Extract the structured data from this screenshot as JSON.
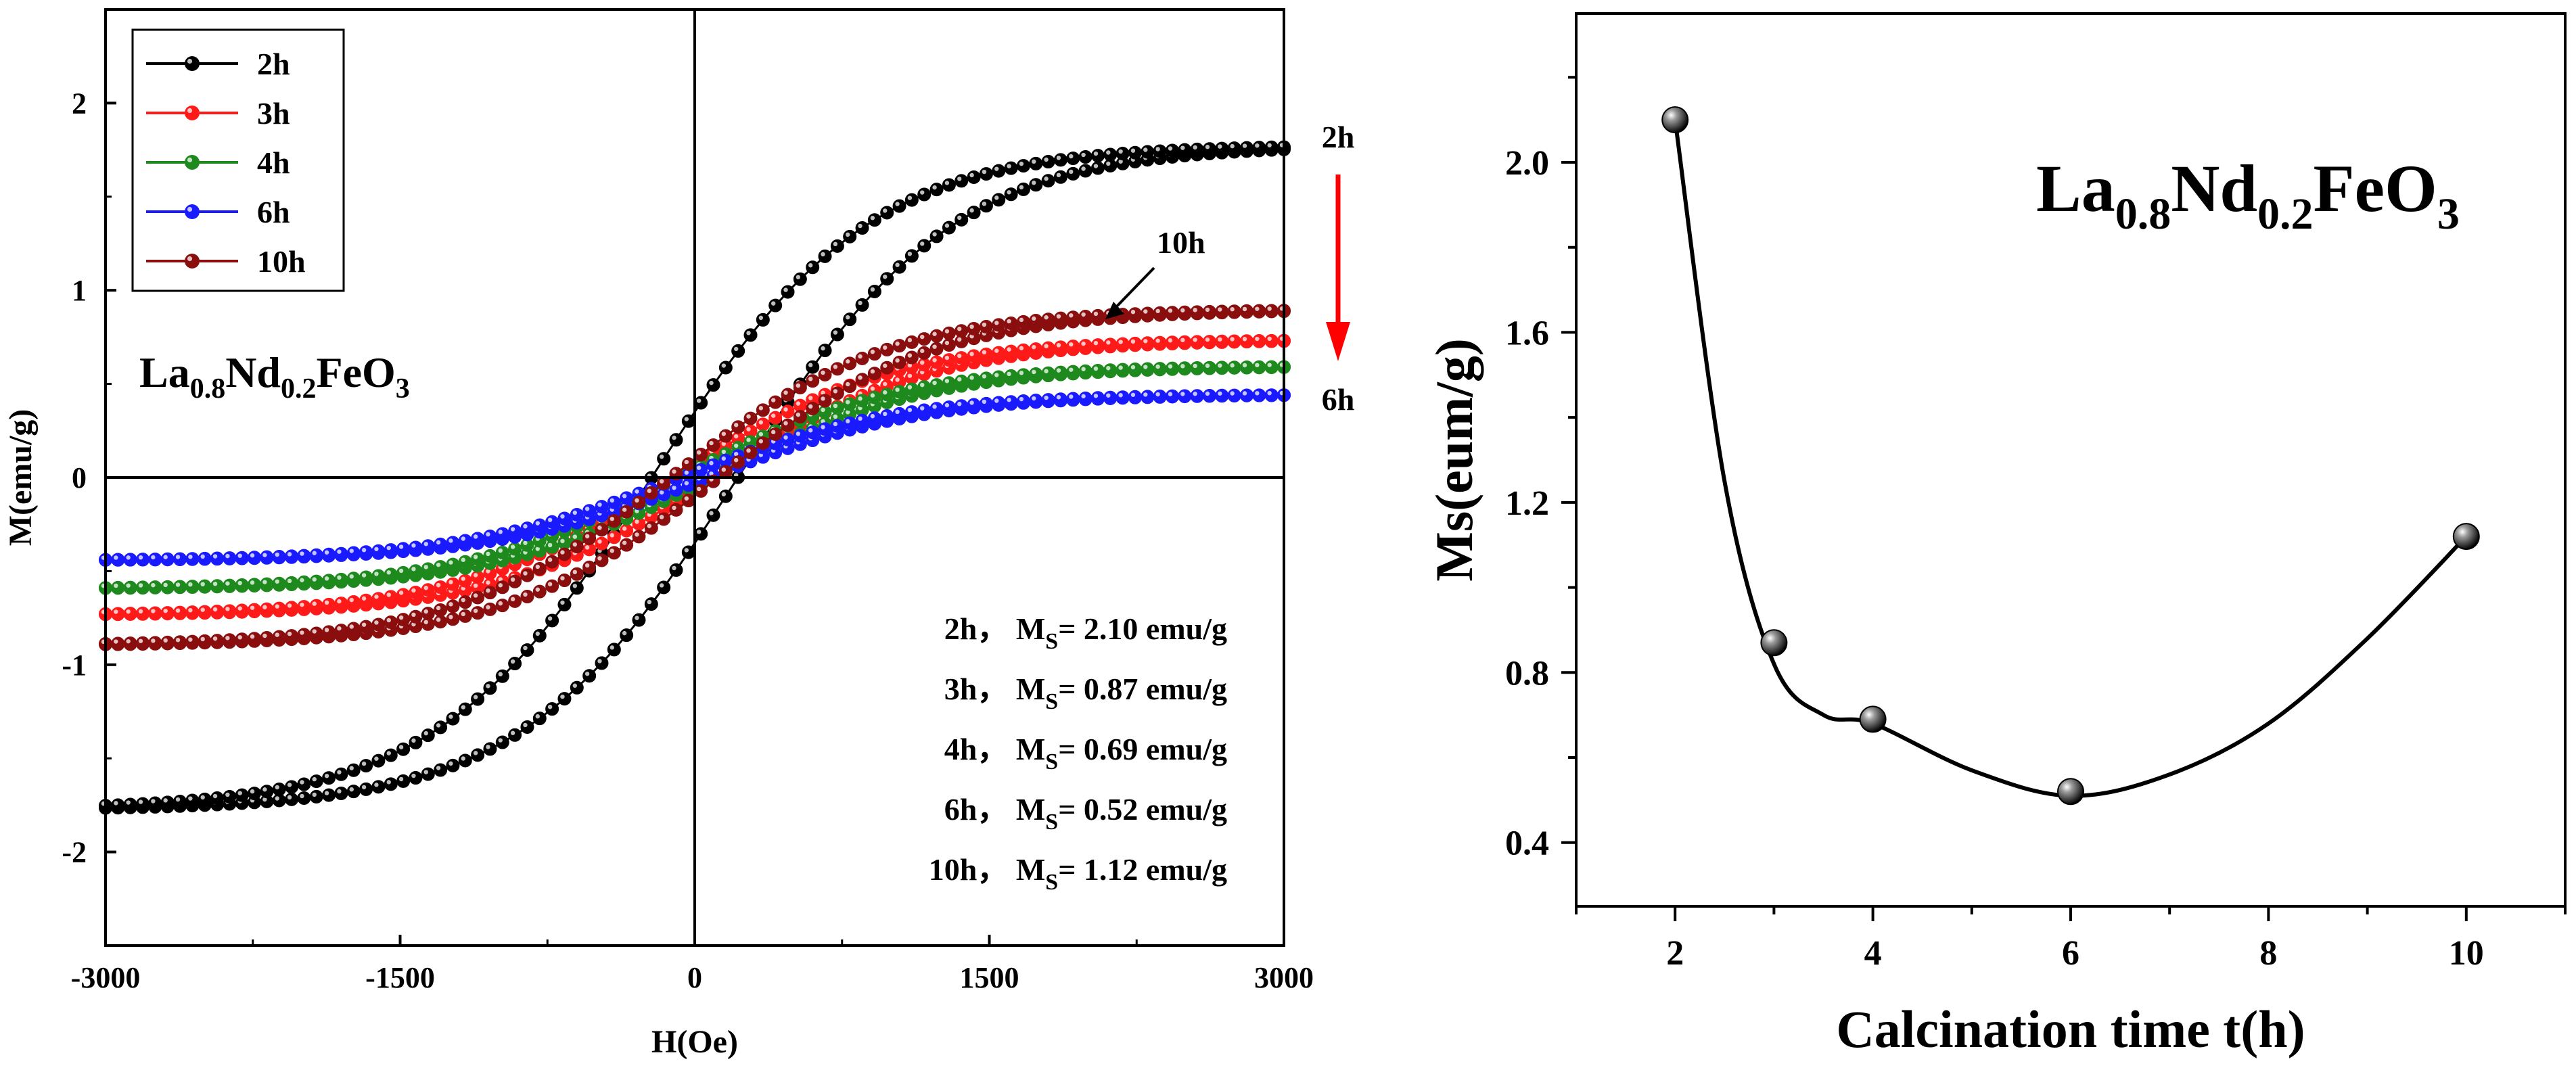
{
  "colors": {
    "2h": "#000000",
    "3h": "#ff1a1a",
    "4h": "#1e8a1e",
    "6h": "#1a1aff",
    "10h": "#8b0e0e",
    "arrow_red": "#ff0000"
  },
  "chart_data": [
    {
      "type": "line",
      "title": "",
      "formula": {
        "base1": "La",
        "sub1": "0.8",
        "base2": "Nd",
        "sub2": "0.2",
        "base3": "FeO",
        "sub3": "3"
      },
      "xlabel": "H(Oe)",
      "ylabel": "M(emu/g)",
      "xlim": [
        -3000,
        3000
      ],
      "ylim": [
        -2.5,
        2.5
      ],
      "xticks": [
        -3000,
        -1500,
        0,
        1500,
        3000
      ],
      "xtick_labels": [
        "-3000",
        "-1500",
        "0",
        "1500",
        "3000"
      ],
      "yticks": [
        -2,
        -1,
        0,
        1,
        2
      ],
      "ytick_labels": [
        "-2",
        "-1",
        "0",
        "1",
        "2"
      ],
      "legend_position": "top-left",
      "series": [
        {
          "name": "2h",
          "color_key": "2h",
          "ms": 2.1,
          "ms_text": "2.10 emu/g",
          "m_at_3000": 1.76,
          "mr": 0.35,
          "hc": 220
        },
        {
          "name": "3h",
          "color_key": "3h",
          "ms": 0.87,
          "ms_text": "0.87 emu/g",
          "m_at_3000": 0.73,
          "mr": 0.09,
          "hc": 100
        },
        {
          "name": "4h",
          "color_key": "4h",
          "ms": 0.69,
          "ms_text": "0.69 emu/g",
          "m_at_3000": 0.59,
          "mr": 0.06,
          "hc": 80
        },
        {
          "name": "6h",
          "color_key": "6h",
          "ms": 0.52,
          "ms_text": "0.52 emu/g",
          "m_at_3000": 0.44,
          "mr": 0.05,
          "hc": 70
        },
        {
          "name": "10h",
          "color_key": "10h",
          "ms": 1.12,
          "ms_text": "1.12 emu/g",
          "m_at_3000": 0.89,
          "mr": 0.1,
          "hc": 120
        }
      ],
      "ms_prefix": "M",
      "ms_sub": "S",
      "ms_sep": "，",
      "annotations": {
        "arrow_top": "2h",
        "arrow_bottom": "6h",
        "pointer": "10h"
      }
    },
    {
      "type": "scatter",
      "title": "",
      "formula": {
        "base1": "La",
        "sub1": "0.8",
        "base2": "Nd",
        "sub2": "0.2",
        "base3": "FeO",
        "sub3": "3"
      },
      "xlabel": "Calcination time t(h)",
      "ylabel": "Ms(eum/g)",
      "xlim": [
        1,
        11
      ],
      "ylim": [
        0.25,
        2.35
      ],
      "xticks": [
        2,
        4,
        6,
        8,
        10
      ],
      "xtick_labels": [
        "2",
        "4",
        "6",
        "8",
        "10"
      ],
      "yticks": [
        0.4,
        0.8,
        1.2,
        1.6,
        2.0
      ],
      "ytick_labels": [
        "0.4",
        "0.8",
        "1.2",
        "1.6",
        "2.0"
      ],
      "x": [
        2,
        3,
        4,
        6,
        10
      ],
      "y": [
        2.1,
        0.87,
        0.69,
        0.52,
        1.12
      ],
      "curve_x": [
        2,
        2.5,
        3,
        3.5,
        4,
        5,
        6,
        7,
        8,
        9,
        10
      ],
      "curve_y": [
        2.1,
        1.25,
        0.82,
        0.7,
        0.68,
        0.57,
        0.51,
        0.56,
        0.68,
        0.88,
        1.12
      ]
    }
  ]
}
